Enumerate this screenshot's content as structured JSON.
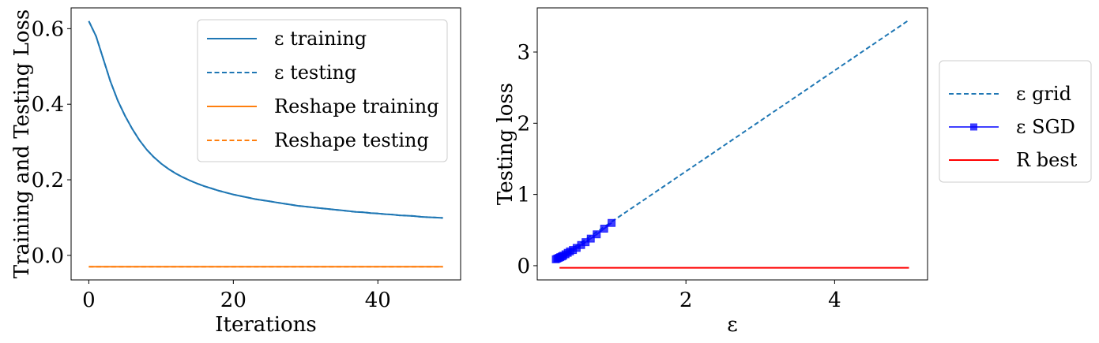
{
  "chart_data": [
    {
      "type": "line",
      "xlabel": "Iterations",
      "ylabel": "Training and Testing Loss",
      "xlim": [
        -2.45,
        51.45
      ],
      "ylim": [
        -0.065,
        0.655
      ],
      "xticks": [
        0,
        20,
        40
      ],
      "xtick_labels": [
        "0",
        "20",
        "40"
      ],
      "yticks": [
        0.0,
        0.2,
        0.4,
        0.6
      ],
      "ytick_labels": [
        "0.0",
        "0.2",
        "0.4",
        "0.6"
      ],
      "grid": false,
      "legend_position": "upper-right",
      "series": [
        {
          "name": "ε training",
          "color": "#1f77b4",
          "linestyle": "solid",
          "x": [
            0,
            1,
            2,
            3,
            4,
            5,
            6,
            7,
            8,
            9,
            10,
            11,
            12,
            13,
            14,
            15,
            16,
            17,
            18,
            19,
            20,
            21,
            22,
            23,
            24,
            25,
            26,
            27,
            28,
            29,
            30,
            31,
            32,
            33,
            34,
            35,
            36,
            37,
            38,
            39,
            40,
            41,
            42,
            43,
            44,
            45,
            46,
            47,
            48,
            49
          ],
          "values": [
            0.62,
            0.58,
            0.52,
            0.46,
            0.41,
            0.37,
            0.335,
            0.305,
            0.28,
            0.26,
            0.243,
            0.229,
            0.217,
            0.207,
            0.198,
            0.19,
            0.183,
            0.177,
            0.171,
            0.166,
            0.161,
            0.157,
            0.153,
            0.149,
            0.146,
            0.143,
            0.14,
            0.137,
            0.134,
            0.131,
            0.129,
            0.127,
            0.125,
            0.123,
            0.121,
            0.119,
            0.117,
            0.115,
            0.114,
            0.112,
            0.111,
            0.109,
            0.108,
            0.106,
            0.105,
            0.104,
            0.102,
            0.101,
            0.1,
            0.099
          ]
        },
        {
          "name": "ε testing",
          "color": "#1f77b4",
          "linestyle": "dashed",
          "x": [
            0,
            1,
            2,
            3,
            4,
            5,
            6,
            7,
            8,
            9,
            10,
            11,
            12,
            13,
            14,
            15,
            16,
            17,
            18,
            19,
            20,
            21,
            22,
            23,
            24,
            25,
            26,
            27,
            28,
            29,
            30,
            31,
            32,
            33,
            34,
            35,
            36,
            37,
            38,
            39,
            40,
            41,
            42,
            43,
            44,
            45,
            46,
            47,
            48,
            49
          ],
          "values": [
            0.62,
            0.58,
            0.52,
            0.46,
            0.41,
            0.37,
            0.335,
            0.305,
            0.28,
            0.26,
            0.243,
            0.229,
            0.217,
            0.207,
            0.198,
            0.19,
            0.183,
            0.177,
            0.171,
            0.166,
            0.161,
            0.157,
            0.153,
            0.149,
            0.146,
            0.143,
            0.14,
            0.137,
            0.134,
            0.131,
            0.129,
            0.127,
            0.125,
            0.123,
            0.121,
            0.119,
            0.117,
            0.115,
            0.114,
            0.112,
            0.111,
            0.109,
            0.108,
            0.106,
            0.105,
            0.104,
            0.102,
            0.101,
            0.1,
            0.099
          ]
        },
        {
          "name": "Reshape training",
          "color": "#ff7f0e",
          "linestyle": "solid",
          "x": [
            0,
            49
          ],
          "values": [
            -0.03,
            -0.03
          ]
        },
        {
          "name": "Reshape testing",
          "color": "#ff7f0e",
          "linestyle": "dashed",
          "x": [
            0,
            49
          ],
          "values": [
            -0.03,
            -0.03
          ]
        }
      ]
    },
    {
      "type": "line",
      "xlabel": "ε",
      "ylabel": "Testing loss",
      "xlim": [
        -0.0,
        5.25
      ],
      "ylim": [
        -0.2,
        3.62
      ],
      "xticks": [
        2,
        4
      ],
      "xtick_labels": [
        "2",
        "4"
      ],
      "yticks": [
        0,
        1,
        2,
        3
      ],
      "ytick_labels": [
        "0",
        "1",
        "2",
        "3"
      ],
      "grid": false,
      "legend_position": "outside-right",
      "series": [
        {
          "name": "ε grid",
          "color": "#1f77b4",
          "linestyle": "dashed",
          "x": [
            0.25,
            5.0
          ],
          "values": [
            0.085,
            3.45
          ]
        },
        {
          "name": "ε SGD",
          "color": "#0000ff",
          "linestyle": "solid",
          "marker": "square",
          "x": [
            0.25,
            0.27,
            0.29,
            0.31,
            0.33,
            0.35,
            0.38,
            0.41,
            0.44,
            0.48,
            0.53,
            0.59,
            0.65,
            0.72,
            0.8,
            0.9,
            1.0
          ],
          "values": [
            0.09,
            0.1,
            0.11,
            0.12,
            0.13,
            0.14,
            0.16,
            0.18,
            0.2,
            0.22,
            0.25,
            0.29,
            0.33,
            0.38,
            0.44,
            0.52,
            0.6
          ]
        },
        {
          "name": "R best",
          "color": "#ff0000",
          "linestyle": "solid",
          "x": [
            0.3,
            5.0
          ],
          "values": [
            -0.03,
            -0.03
          ]
        }
      ]
    }
  ]
}
